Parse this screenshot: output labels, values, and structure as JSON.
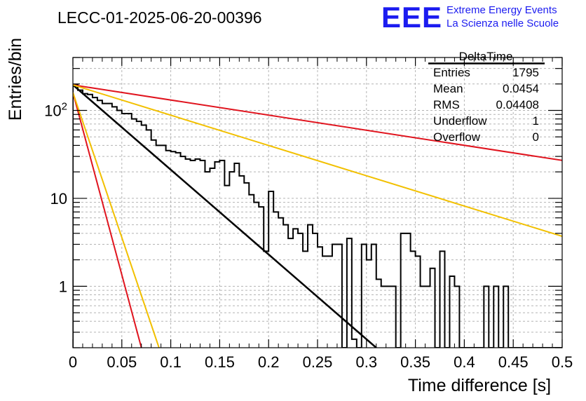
{
  "header": {
    "run_title": "LECC-01-2025-06-20-00396",
    "logo_text": "EEE",
    "logo_line1": "Extreme Energy Events",
    "logo_line2": "La Scienza nelle Scuole",
    "logo_color": "#1c1cf0"
  },
  "stats_box": {
    "title": "DeltaTime",
    "rows": [
      {
        "label": "Entries",
        "value": "1795"
      },
      {
        "label": "Mean",
        "value": "0.0454"
      },
      {
        "label": "RMS",
        "value": "0.04408"
      },
      {
        "label": "Underflow",
        "value": "1"
      },
      {
        "label": "Overflow",
        "value": "0"
      }
    ]
  },
  "chart_data": {
    "type": "line",
    "xlabel": "Time difference [s]",
    "ylabel": "Entries/bin",
    "xlim": [
      0,
      0.5
    ],
    "ylim": [
      0.2,
      400
    ],
    "yscale": "log",
    "grid": true,
    "x_ticks": [
      {
        "value": 0,
        "label": "0"
      },
      {
        "value": 0.05,
        "label": "0.05"
      },
      {
        "value": 0.1,
        "label": "0.1"
      },
      {
        "value": 0.15,
        "label": "0.15"
      },
      {
        "value": 0.2,
        "label": "0.2"
      },
      {
        "value": 0.25,
        "label": "0.25"
      },
      {
        "value": 0.3,
        "label": "0.3"
      },
      {
        "value": 0.35,
        "label": "0.35"
      },
      {
        "value": 0.4,
        "label": "0.4"
      },
      {
        "value": 0.45,
        "label": "0.45"
      },
      {
        "value": 0.5,
        "label": "0.5"
      }
    ],
    "y_ticks": [
      {
        "value": 1,
        "label": "1"
      },
      {
        "value": 10,
        "label": "10"
      },
      {
        "value": 100,
        "label": "10",
        "exponent": "2"
      }
    ],
    "histogram": {
      "bin_width": 0.005,
      "color": "#000000",
      "counts": [
        195,
        170,
        155,
        152,
        140,
        130,
        120,
        120,
        110,
        100,
        92,
        92,
        80,
        75,
        68,
        60,
        46,
        40,
        40,
        35,
        34,
        33,
        30,
        28,
        27,
        28,
        27,
        20,
        22,
        26,
        27,
        14,
        20,
        25,
        18,
        15,
        11,
        9,
        8,
        2.5,
        12,
        7,
        6,
        5,
        3.5,
        4.5,
        4,
        2.5,
        5,
        4,
        2.8,
        2.2,
        2.2,
        3,
        3,
        0,
        3.5,
        0.25,
        0.2,
        3.0,
        2,
        3,
        1.2,
        1,
        1,
        1,
        0.2,
        4,
        4,
        2.5,
        2.2,
        1,
        1,
        1.6,
        0.2,
        2.5,
        0.2,
        1.3,
        1,
        0.2,
        0.2,
        0.2,
        0.2,
        0.2,
        1,
        0.2,
        1,
        0.2,
        1,
        0.2,
        0.2,
        0.2,
        0.2,
        0.2,
        0.2,
        0.2,
        0,
        0.2,
        0,
        0.2,
        0,
        1,
        0.2,
        0,
        0.2,
        0,
        0.2,
        1,
        0.2,
        0,
        0,
        0,
        0,
        0,
        0,
        0,
        0,
        0,
        0,
        0,
        0,
        0,
        0,
        0,
        0,
        0,
        0,
        0,
        0,
        0,
        0,
        0,
        0,
        0,
        0,
        0,
        0
      ]
    },
    "fits": [
      {
        "color": "#000000",
        "width": 2.5,
        "points": [
          [
            0,
            195
          ],
          [
            0.31,
            0.2
          ]
        ]
      },
      {
        "color": "#e0141e",
        "width": 2,
        "points": [
          [
            0,
            195
          ],
          [
            0.5,
            27
          ]
        ]
      },
      {
        "color": "#f2c000",
        "width": 2,
        "points": [
          [
            0,
            195
          ],
          [
            0.5,
            3.7
          ]
        ]
      },
      {
        "color": "#e0141e",
        "width": 2,
        "points": [
          [
            0,
            160
          ],
          [
            0.07,
            0.2
          ]
        ]
      },
      {
        "color": "#f2c000",
        "width": 2,
        "points": [
          [
            0,
            160
          ],
          [
            0.088,
            0.2
          ]
        ]
      }
    ]
  }
}
